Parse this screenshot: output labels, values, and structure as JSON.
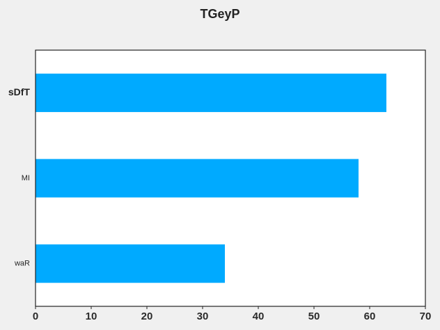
{
  "chart_data": {
    "type": "bar",
    "orientation": "horizontal",
    "title": "TGeyP",
    "xlabel": "",
    "ylabel": "",
    "categories": [
      "waR",
      "MI",
      "sDfT"
    ],
    "values": [
      34,
      58,
      63
    ],
    "xlim": [
      0,
      70
    ],
    "x_ticks": [
      0,
      10,
      20,
      30,
      40,
      50,
      60,
      70
    ],
    "grid": false,
    "legend": "none",
    "colors": {
      "bar": "#00aaff",
      "plot_background": "#ffffff",
      "figure_background": "#f0f0f0",
      "axes_edge": "#222222"
    }
  }
}
